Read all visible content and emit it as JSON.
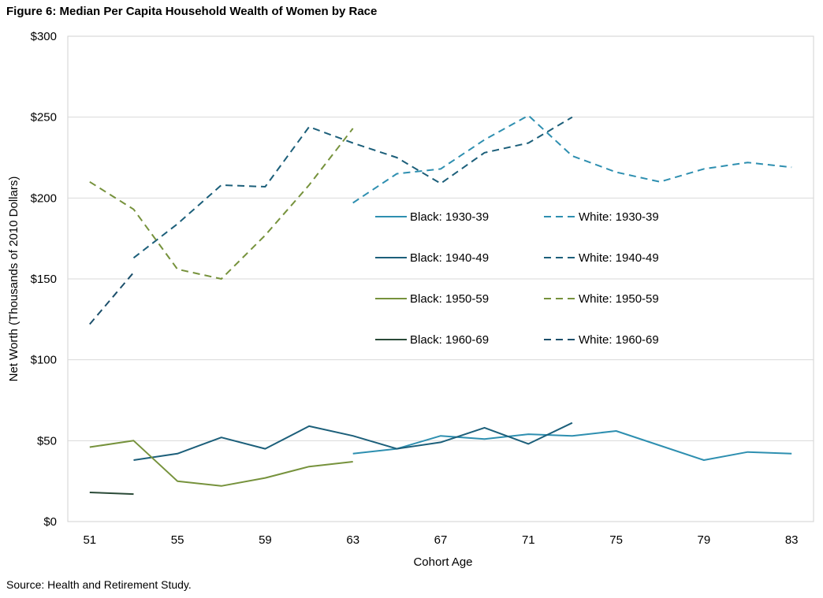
{
  "figure_title": "Figure 6: Median Per Capita Household Wealth of Women by Race",
  "source": "Source: Health and Retirement Study.",
  "chart_data": {
    "type": "line",
    "title": "Figure 6: Median Per Capita Household Wealth of Women by Race",
    "xlabel": "Cohort Age",
    "ylabel": "Net Worth (Thousands of 2010 Dollars)",
    "xlim": [
      50,
      84
    ],
    "ylim": [
      0,
      300
    ],
    "x_ticks": [
      51,
      55,
      59,
      63,
      67,
      71,
      75,
      79,
      83
    ],
    "x_tick_labels": [
      "51",
      "55",
      "59",
      "63",
      "67",
      "71",
      "75",
      "79",
      "83"
    ],
    "y_ticks": [
      0,
      50,
      100,
      150,
      200,
      250,
      300
    ],
    "y_tick_labels": [
      "$0",
      "$50",
      "$100",
      "$150",
      "$200",
      "$250",
      "$300"
    ],
    "grid": "horizontal",
    "legend_position": "center",
    "series": [
      {
        "name": "Black: 1930-39",
        "color": "#2e8fb0",
        "dash": false,
        "x": [
          63,
          65,
          67,
          69,
          71,
          73,
          75,
          77,
          79,
          81,
          83
        ],
        "values": [
          42,
          45,
          53,
          51,
          54,
          53,
          56,
          47,
          38,
          43,
          42
        ]
      },
      {
        "name": "White: 1930-39",
        "color": "#2e8fb0",
        "dash": true,
        "x": [
          63,
          65,
          67,
          69,
          71,
          73,
          75,
          77,
          79,
          81,
          83
        ],
        "values": [
          197,
          215,
          218,
          236,
          251,
          226,
          216,
          210,
          218,
          222,
          219
        ]
      },
      {
        "name": "Black: 1940-49",
        "color": "#1c5f7a",
        "dash": false,
        "x": [
          53,
          55,
          57,
          59,
          61,
          63,
          65,
          67,
          69,
          71,
          73
        ],
        "values": [
          38,
          42,
          52,
          45,
          59,
          53,
          45,
          49,
          58,
          48,
          61
        ]
      },
      {
        "name": "White: 1940-49",
        "color": "#1c5f7a",
        "dash": true,
        "x": [
          53,
          55,
          57,
          59,
          61,
          63,
          65,
          67,
          69,
          71,
          73
        ],
        "values": [
          163,
          184,
          208,
          207,
          244,
          234,
          225,
          209,
          228,
          234,
          250
        ]
      },
      {
        "name": "Black: 1950-59",
        "color": "#76923c",
        "dash": false,
        "x": [
          51,
          53,
          55,
          57,
          59,
          61,
          63
        ],
        "values": [
          46,
          50,
          25,
          22,
          27,
          34,
          37
        ]
      },
      {
        "name": "White: 1950-59",
        "color": "#76923c",
        "dash": true,
        "x": [
          51,
          53,
          55,
          57,
          59,
          61,
          63
        ],
        "values": [
          210,
          193,
          156,
          150,
          177,
          208,
          243
        ]
      },
      {
        "name": "Black: 1960-69",
        "color": "#2a4a37",
        "dash": false,
        "x": [
          51,
          53
        ],
        "values": [
          18,
          17
        ]
      },
      {
        "name": "White: 1960-69",
        "color": "#1c4f6b",
        "dash": true,
        "x": [
          51,
          53
        ],
        "values": [
          122,
          154
        ]
      }
    ]
  }
}
